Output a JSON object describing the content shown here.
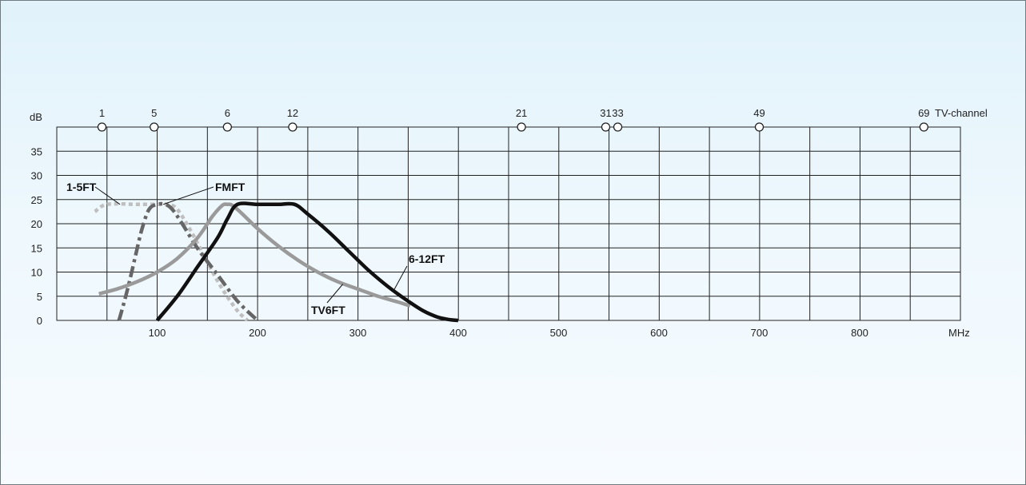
{
  "chart_data": {
    "type": "line",
    "title": "",
    "xlabel": "MHz",
    "ylabel": "dB",
    "xlim": [
      0,
      900
    ],
    "ylim": [
      0,
      40
    ],
    "x_ticks": [
      100,
      200,
      300,
      400,
      500,
      600,
      700,
      800
    ],
    "y_ticks": [
      0,
      5,
      10,
      15,
      20,
      25,
      30,
      35
    ],
    "grid": true,
    "legend": "inline-labels",
    "channel_axis": {
      "label": "TV-channel",
      "channels": [
        {
          "label": "1",
          "mhz": 45
        },
        {
          "label": "5",
          "mhz": 97
        },
        {
          "label": "6",
          "mhz": 170
        },
        {
          "label": "12",
          "mhz": 235
        },
        {
          "label": "21",
          "mhz": 463
        },
        {
          "label": "31",
          "mhz": 547
        },
        {
          "label": "33",
          "mhz": 559
        },
        {
          "label": "49",
          "mhz": 700
        },
        {
          "label": "69",
          "mhz": 864
        }
      ]
    },
    "series": [
      {
        "name": "1-5FT",
        "color": "#bfbfbf",
        "dash": "dotted",
        "x": [
          38,
          50,
          80,
          100,
          110,
          120,
          135,
          150,
          165,
          180,
          190
        ],
        "y": [
          22.5,
          24,
          24,
          24,
          24,
          23,
          18,
          12,
          6.5,
          2,
          0
        ]
      },
      {
        "name": "FMFT",
        "color": "#666666",
        "dash": "dashdot",
        "x": [
          62,
          70,
          78,
          85,
          92,
          100,
          108,
          115,
          125,
          140,
          160,
          180,
          200
        ],
        "y": [
          0,
          6,
          13,
          19,
          23,
          24,
          24,
          23,
          20,
          15,
          9.5,
          4,
          0
        ]
      },
      {
        "name": "TV6FT",
        "color": "#9a9a9a",
        "dash": "solid",
        "x": [
          42,
          60,
          80,
          100,
          120,
          140,
          155,
          165,
          170,
          175,
          185,
          200,
          220,
          240,
          260,
          280,
          300,
          320,
          340,
          352
        ],
        "y": [
          5.5,
          6.5,
          8,
          10,
          12.8,
          17,
          21.5,
          23.8,
          24,
          23.8,
          22,
          19,
          15.5,
          12.5,
          10,
          8,
          6.5,
          5,
          3.8,
          3
        ]
      },
      {
        "name": "6-12FT",
        "color": "#111111",
        "dash": "solid",
        "x": [
          100,
          120,
          140,
          160,
          170,
          180,
          200,
          220,
          237,
          250,
          270,
          290,
          310,
          330,
          350,
          365,
          378,
          390,
          400
        ],
        "y": [
          0,
          5,
          11,
          17,
          21,
          24,
          24,
          24,
          24,
          22,
          18.5,
          14.5,
          10.5,
          7,
          4,
          2,
          0.8,
          0.2,
          0
        ]
      }
    ],
    "annotations": [
      {
        "series": "1-5FT",
        "text": "1-5FT",
        "x": 63,
        "y": 24
      },
      {
        "series": "FMFT",
        "text": "FMFT",
        "x": 106,
        "y": 24
      },
      {
        "series": "TV6FT",
        "text": "TV6FT",
        "x": 285,
        "y": 7.5
      },
      {
        "series": "6-12FT",
        "text": "6-12FT",
        "x": 336,
        "y": 6.3
      }
    ]
  }
}
